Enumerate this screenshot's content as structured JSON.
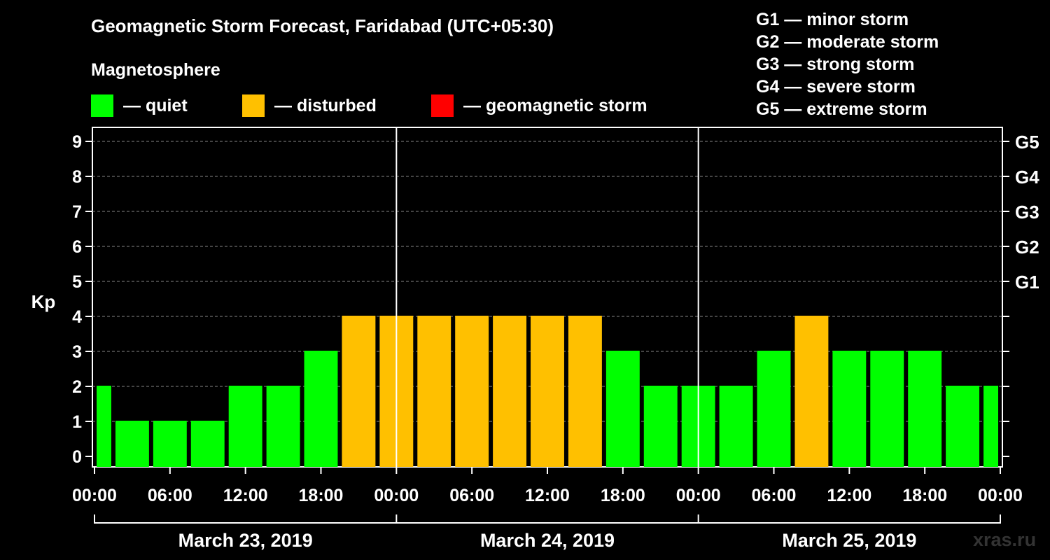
{
  "chart_data": {
    "type": "bar",
    "title": "Geomagnetic Storm Forecast, Faridabad (UTC+05:30)",
    "subtitle": "Magnetosphere",
    "ylabel": "Kp",
    "ylim": [
      0,
      9
    ],
    "yticks": [
      "0",
      "1",
      "2",
      "3",
      "4",
      "5",
      "6",
      "7",
      "8",
      "9"
    ],
    "storm_ticks": [
      {
        "kp": 5,
        "label": "G1"
      },
      {
        "kp": 6,
        "label": "G2"
      },
      {
        "kp": 7,
        "label": "G3"
      },
      {
        "kp": 8,
        "label": "G4"
      },
      {
        "kp": 9,
        "label": "G5"
      }
    ],
    "x_hours_range": [
      0,
      72
    ],
    "x_tick_labels": [
      "00:00",
      "06:00",
      "12:00",
      "18:00",
      "00:00",
      "06:00",
      "12:00",
      "18:00",
      "00:00",
      "06:00",
      "12:00",
      "18:00",
      "00:00"
    ],
    "days": [
      "March 23, 2019",
      "March 24, 2019",
      "March 25, 2019"
    ],
    "bars": [
      {
        "start": 0,
        "end": 1.5,
        "kp": 2,
        "status": "quiet"
      },
      {
        "start": 1.5,
        "end": 4.5,
        "kp": 1,
        "status": "quiet"
      },
      {
        "start": 4.5,
        "end": 7.5,
        "kp": 1,
        "status": "quiet"
      },
      {
        "start": 7.5,
        "end": 10.5,
        "kp": 1,
        "status": "quiet"
      },
      {
        "start": 10.5,
        "end": 13.5,
        "kp": 2,
        "status": "quiet"
      },
      {
        "start": 13.5,
        "end": 16.5,
        "kp": 2,
        "status": "quiet"
      },
      {
        "start": 16.5,
        "end": 19.5,
        "kp": 3,
        "status": "quiet"
      },
      {
        "start": 19.5,
        "end": 22.5,
        "kp": 4,
        "status": "disturbed"
      },
      {
        "start": 22.5,
        "end": 25.5,
        "kp": 4,
        "status": "disturbed"
      },
      {
        "start": 25.5,
        "end": 28.5,
        "kp": 4,
        "status": "disturbed"
      },
      {
        "start": 28.5,
        "end": 31.5,
        "kp": 4,
        "status": "disturbed"
      },
      {
        "start": 31.5,
        "end": 34.5,
        "kp": 4,
        "status": "disturbed"
      },
      {
        "start": 34.5,
        "end": 37.5,
        "kp": 4,
        "status": "disturbed"
      },
      {
        "start": 37.5,
        "end": 40.5,
        "kp": 4,
        "status": "disturbed"
      },
      {
        "start": 40.5,
        "end": 43.5,
        "kp": 3,
        "status": "quiet"
      },
      {
        "start": 43.5,
        "end": 46.5,
        "kp": 2,
        "status": "quiet"
      },
      {
        "start": 46.5,
        "end": 49.5,
        "kp": 2,
        "status": "quiet"
      },
      {
        "start": 49.5,
        "end": 52.5,
        "kp": 2,
        "status": "quiet"
      },
      {
        "start": 52.5,
        "end": 55.5,
        "kp": 3,
        "status": "quiet"
      },
      {
        "start": 55.5,
        "end": 58.5,
        "kp": 4,
        "status": "disturbed"
      },
      {
        "start": 58.5,
        "end": 61.5,
        "kp": 3,
        "status": "quiet"
      },
      {
        "start": 61.5,
        "end": 64.5,
        "kp": 3,
        "status": "quiet"
      },
      {
        "start": 64.5,
        "end": 67.5,
        "kp": 3,
        "status": "quiet"
      },
      {
        "start": 67.5,
        "end": 70.5,
        "kp": 2,
        "status": "quiet"
      },
      {
        "start": 70.5,
        "end": 72,
        "kp": 2,
        "status": "quiet"
      }
    ],
    "legend": [
      {
        "key": "quiet",
        "label": "— quiet",
        "color": "#00ff00"
      },
      {
        "key": "disturbed",
        "label": "— disturbed",
        "color": "#ffc000"
      },
      {
        "key": "storm",
        "label": "— geomagnetic storm",
        "color": "#ff0000"
      }
    ],
    "storm_scale": [
      "G1 — minor storm",
      "G2 — moderate storm",
      "G3 — strong storm",
      "G4 — severe storm",
      "G5 — extreme storm"
    ]
  },
  "colors": {
    "quiet": "#00ff00",
    "disturbed": "#ffc000",
    "storm": "#ff0000",
    "background": "#000000",
    "axis": "#ffffff",
    "grid": "#888888"
  },
  "watermark": "xras.ru"
}
